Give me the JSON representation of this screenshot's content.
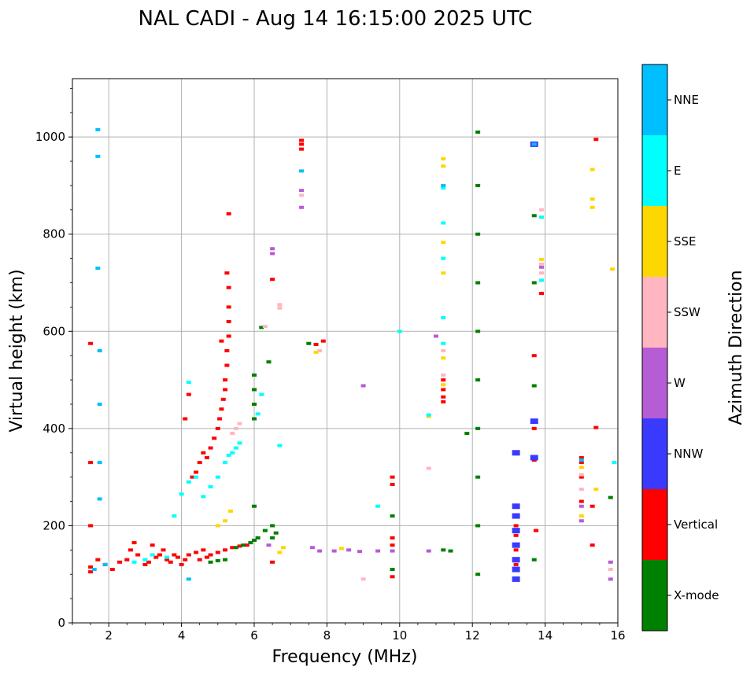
{
  "chart_data": {
    "type": "scatter",
    "title": "NAL CADI - Aug 14 16:15:00 2025 UTC",
    "xlabel": "Frequency (MHz)",
    "ylabel": "Virtual height (km)",
    "xlim": [
      1,
      16
    ],
    "ylim": [
      0,
      1120
    ],
    "xticks": [
      2,
      4,
      6,
      8,
      10,
      12,
      14,
      16
    ],
    "yticks": [
      0,
      200,
      400,
      600,
      800,
      1000
    ],
    "grid": true,
    "colorbar": {
      "label": "Azimuth Direction",
      "categories": [
        {
          "name": "X-mode",
          "color": "#008000"
        },
        {
          "name": "Vertical",
          "color": "#ff0000"
        },
        {
          "name": "NNW",
          "color": "#3a3aff"
        },
        {
          "name": "W",
          "color": "#b65cd4"
        },
        {
          "name": "SSW",
          "color": "#ffb6c1"
        },
        {
          "name": "SSE",
          "color": "#ffd700"
        },
        {
          "name": "E",
          "color": "#00ffff"
        },
        {
          "name": "NNE",
          "color": "#00bfff"
        }
      ]
    },
    "series": [
      {
        "name": "Vertical",
        "points": [
          [
            1.5,
            105
          ],
          [
            1.5,
            115
          ],
          [
            1.5,
            200
          ],
          [
            1.5,
            330
          ],
          [
            1.5,
            575
          ],
          [
            1.7,
            130
          ],
          [
            1.9,
            120
          ],
          [
            2.1,
            110
          ],
          [
            2.3,
            125
          ],
          [
            2.5,
            130
          ],
          [
            2.6,
            150
          ],
          [
            2.7,
            165
          ],
          [
            2.8,
            140
          ],
          [
            3.0,
            120
          ],
          [
            3.1,
            125
          ],
          [
            3.2,
            160
          ],
          [
            3.3,
            135
          ],
          [
            3.4,
            140
          ],
          [
            3.5,
            150
          ],
          [
            3.6,
            130
          ],
          [
            3.7,
            125
          ],
          [
            3.8,
            140
          ],
          [
            3.9,
            135
          ],
          [
            4.0,
            120
          ],
          [
            4.1,
            130
          ],
          [
            4.2,
            140
          ],
          [
            4.4,
            145
          ],
          [
            4.5,
            130
          ],
          [
            4.6,
            150
          ],
          [
            4.7,
            135
          ],
          [
            4.8,
            140
          ],
          [
            5.0,
            145
          ],
          [
            5.2,
            150
          ],
          [
            5.4,
            155
          ],
          [
            5.6,
            158
          ],
          [
            5.8,
            160
          ],
          [
            6.5,
            125
          ],
          [
            4.1,
            420
          ],
          [
            4.2,
            470
          ],
          [
            4.3,
            300
          ],
          [
            4.4,
            310
          ],
          [
            4.5,
            330
          ],
          [
            4.6,
            350
          ],
          [
            4.7,
            340
          ],
          [
            4.8,
            360
          ],
          [
            4.9,
            380
          ],
          [
            5.0,
            400
          ],
          [
            5.05,
            420
          ],
          [
            5.1,
            440
          ],
          [
            5.15,
            460
          ],
          [
            5.2,
            480
          ],
          [
            5.2,
            500
          ],
          [
            5.25,
            530
          ],
          [
            5.25,
            560
          ],
          [
            5.3,
            590
          ],
          [
            5.3,
            620
          ],
          [
            5.3,
            650
          ],
          [
            5.3,
            690
          ],
          [
            5.25,
            720
          ],
          [
            5.1,
            580
          ],
          [
            5.3,
            842
          ],
          [
            6.5,
            707
          ],
          [
            7.3,
            985
          ],
          [
            7.3,
            993
          ],
          [
            7.3,
            975
          ],
          [
            7.7,
            573
          ],
          [
            7.9,
            580
          ],
          [
            9.8,
            300
          ],
          [
            9.8,
            285
          ],
          [
            9.8,
            175
          ],
          [
            9.8,
            160
          ],
          [
            9.8,
            95
          ],
          [
            11.2,
            455
          ],
          [
            11.2,
            465
          ],
          [
            11.2,
            480
          ],
          [
            11.2,
            500
          ],
          [
            13.2,
            180
          ],
          [
            13.2,
            200
          ],
          [
            13.2,
            150
          ],
          [
            13.2,
            120
          ],
          [
            13.75,
            190
          ],
          [
            13.7,
            335
          ],
          [
            13.7,
            550
          ],
          [
            13.7,
            400
          ],
          [
            13.9,
            678
          ],
          [
            15.0,
            330
          ],
          [
            15.0,
            340
          ],
          [
            15.0,
            300
          ],
          [
            15.0,
            250
          ],
          [
            15.3,
            160
          ],
          [
            15.3,
            240
          ],
          [
            15.4,
            402
          ],
          [
            15.4,
            995
          ]
        ]
      },
      {
        "name": "X-mode",
        "points": [
          [
            4.8,
            125
          ],
          [
            5.0,
            128
          ],
          [
            5.2,
            130
          ],
          [
            5.5,
            155
          ],
          [
            5.7,
            160
          ],
          [
            5.9,
            165
          ],
          [
            6.0,
            170
          ],
          [
            6.1,
            175
          ],
          [
            6.3,
            190
          ],
          [
            6.5,
            200
          ],
          [
            6.5,
            175
          ],
          [
            6.6,
            185
          ],
          [
            6.0,
            240
          ],
          [
            6.0,
            420
          ],
          [
            6.0,
            450
          ],
          [
            6.0,
            480
          ],
          [
            6.0,
            510
          ],
          [
            6.2,
            608
          ],
          [
            6.4,
            537
          ],
          [
            7.5,
            575
          ],
          [
            9.8,
            220
          ],
          [
            9.8,
            110
          ],
          [
            11.2,
            150
          ],
          [
            11.4,
            148
          ],
          [
            11.85,
            390
          ],
          [
            12.15,
            100
          ],
          [
            12.15,
            200
          ],
          [
            12.15,
            300
          ],
          [
            12.15,
            400
          ],
          [
            12.15,
            500
          ],
          [
            12.15,
            600
          ],
          [
            12.15,
            700
          ],
          [
            12.15,
            800
          ],
          [
            12.15,
            900
          ],
          [
            12.15,
            1010
          ],
          [
            13.7,
            130
          ],
          [
            13.7,
            488
          ],
          [
            13.7,
            700
          ],
          [
            13.7,
            838
          ],
          [
            15.8,
            258
          ]
        ]
      },
      {
        "name": "NNW",
        "points": [
          [
            13.2,
            90
          ],
          [
            13.2,
            110
          ],
          [
            13.2,
            130
          ],
          [
            13.2,
            160
          ],
          [
            13.2,
            190
          ],
          [
            13.2,
            220
          ],
          [
            13.2,
            240
          ],
          [
            13.2,
            350
          ],
          [
            13.7,
            340
          ],
          [
            13.7,
            415
          ],
          [
            13.7,
            985
          ]
        ]
      },
      {
        "name": "W",
        "points": [
          [
            6.5,
            770
          ],
          [
            6.5,
            760
          ],
          [
            6.4,
            160
          ],
          [
            7.3,
            890
          ],
          [
            7.3,
            855
          ],
          [
            7.6,
            155
          ],
          [
            7.8,
            148
          ],
          [
            8.2,
            148
          ],
          [
            8.6,
            150
          ],
          [
            8.9,
            147
          ],
          [
            9.0,
            488
          ],
          [
            9.4,
            148
          ],
          [
            9.8,
            148
          ],
          [
            10.8,
            148
          ],
          [
            11.0,
            590
          ],
          [
            13.9,
            732
          ],
          [
            15.0,
            240
          ],
          [
            15.0,
            210
          ],
          [
            15.8,
            125
          ],
          [
            15.8,
            90
          ]
        ]
      },
      {
        "name": "SSW",
        "points": [
          [
            5.5,
            400
          ],
          [
            5.4,
            390
          ],
          [
            5.6,
            410
          ],
          [
            6.7,
            655
          ],
          [
            6.7,
            648
          ],
          [
            6.3,
            610
          ],
          [
            7.3,
            880
          ],
          [
            7.8,
            560
          ],
          [
            9.0,
            90
          ],
          [
            10.8,
            318
          ],
          [
            11.2,
            560
          ],
          [
            11.2,
            510
          ],
          [
            13.9,
            720
          ],
          [
            13.9,
            738
          ],
          [
            13.9,
            850
          ],
          [
            15.0,
            305
          ],
          [
            15.0,
            275
          ],
          [
            15.8,
            110
          ]
        ]
      },
      {
        "name": "SSE",
        "points": [
          [
            5.0,
            200
          ],
          [
            5.2,
            210
          ],
          [
            5.35,
            230
          ],
          [
            6.7,
            145
          ],
          [
            6.8,
            155
          ],
          [
            8.4,
            153
          ],
          [
            10.8,
            425
          ],
          [
            11.2,
            940
          ],
          [
            11.2,
            955
          ],
          [
            11.2,
            783
          ],
          [
            11.2,
            720
          ],
          [
            11.2,
            545
          ],
          [
            11.2,
            490
          ],
          [
            13.9,
            748
          ],
          [
            15.0,
            220
          ],
          [
            15.0,
            320
          ],
          [
            15.3,
            933
          ],
          [
            15.3,
            872
          ],
          [
            15.3,
            855
          ],
          [
            15.4,
            275
          ],
          [
            15.85,
            728
          ],
          [
            7.7,
            557
          ]
        ]
      },
      {
        "name": "E",
        "points": [
          [
            2.7,
            125
          ],
          [
            3.0,
            130
          ],
          [
            3.2,
            140
          ],
          [
            3.6,
            135
          ],
          [
            3.8,
            220
          ],
          [
            4.0,
            265
          ],
          [
            4.2,
            290
          ],
          [
            4.4,
            300
          ],
          [
            4.6,
            260
          ],
          [
            4.8,
            280
          ],
          [
            5.0,
            300
          ],
          [
            5.2,
            330
          ],
          [
            5.3,
            345
          ],
          [
            5.4,
            350
          ],
          [
            5.5,
            360
          ],
          [
            5.6,
            370
          ],
          [
            4.2,
            495
          ],
          [
            6.1,
            430
          ],
          [
            6.2,
            470
          ],
          [
            6.7,
            365
          ],
          [
            9.4,
            240
          ],
          [
            10.0,
            600
          ],
          [
            10.8,
            428
          ],
          [
            11.2,
            895
          ],
          [
            11.2,
            823
          ],
          [
            11.2,
            628
          ],
          [
            11.2,
            575
          ],
          [
            11.2,
            750
          ],
          [
            13.9,
            705
          ],
          [
            13.9,
            835
          ],
          [
            15.9,
            330
          ]
        ]
      },
      {
        "name": "NNE",
        "points": [
          [
            1.7,
            1015
          ],
          [
            1.7,
            960
          ],
          [
            1.7,
            730
          ],
          [
            1.75,
            560
          ],
          [
            1.75,
            450
          ],
          [
            1.75,
            330
          ],
          [
            1.75,
            255
          ],
          [
            1.6,
            110
          ],
          [
            1.9,
            120
          ],
          [
            4.2,
            90
          ],
          [
            7.3,
            930
          ],
          [
            11.2,
            900
          ],
          [
            13.7,
            985
          ],
          [
            15.0,
            335
          ]
        ]
      }
    ]
  }
}
